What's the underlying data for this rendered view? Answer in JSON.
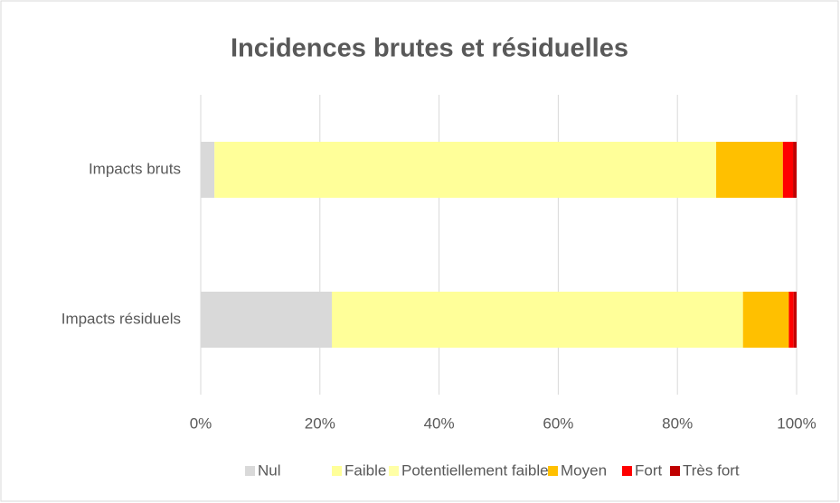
{
  "chart_data": {
    "type": "stacked_bar_horizontal",
    "title": "Incidences brutes et résiduelles",
    "categories": [
      "Impacts bruts",
      "Impacts résiduels"
    ],
    "series": [
      {
        "name": "Nul",
        "color": "#d9d9d9",
        "values": [
          2.3,
          22.0
        ]
      },
      {
        "name": "Faible",
        "color": "#ffff99",
        "values": [
          84.2,
          69.0
        ]
      },
      {
        "name": "Potentiellement faible",
        "color": "#ffffa6",
        "values": [
          0,
          0
        ]
      },
      {
        "name": "Moyen",
        "color": "#ffc000",
        "values": [
          11.2,
          7.7
        ]
      },
      {
        "name": "Fort",
        "color": "#ff0000",
        "values": [
          1.7,
          0.8
        ]
      },
      {
        "name": "Très fort",
        "color": "#c00000",
        "values": [
          0.6,
          0.5
        ]
      }
    ],
    "xlim": [
      0,
      100
    ],
    "xticks": [
      {
        "value": 0,
        "label": "0%"
      },
      {
        "value": 20,
        "label": "20%"
      },
      {
        "value": 40,
        "label": "40%"
      },
      {
        "value": 60,
        "label": "60%"
      },
      {
        "value": 80,
        "label": "80%"
      },
      {
        "value": 100,
        "label": "100%"
      }
    ],
    "grid": true,
    "legend": "bottom"
  }
}
